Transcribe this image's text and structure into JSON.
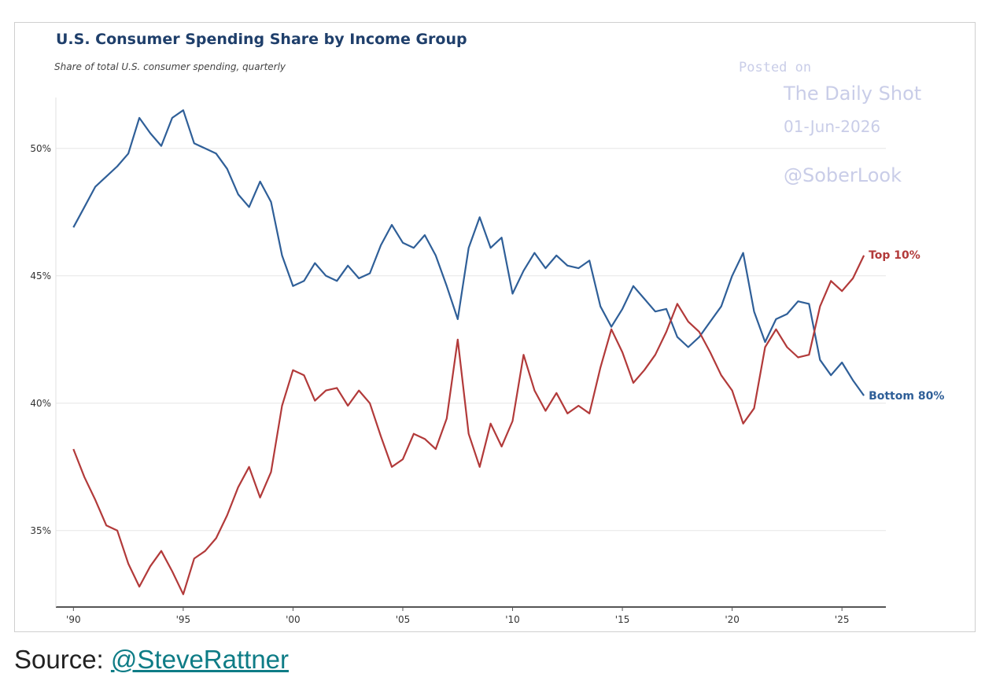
{
  "chart_data": {
    "type": "line",
    "title": "U.S. Consumer Spending Share by Income Group",
    "subtitle": "Share of total U.S. consumer spending, quarterly",
    "xlabel": "",
    "ylabel": "",
    "x_ticks": [
      "'90",
      "'95",
      "'00",
      "'05",
      "'10",
      "'15",
      "'20",
      "'25"
    ],
    "x_tick_years": [
      1990,
      1995,
      2000,
      2005,
      2010,
      2015,
      2020,
      2025
    ],
    "y_ticks": [
      "35%",
      "40%",
      "45%",
      "50%"
    ],
    "y_tick_values": [
      35,
      40,
      45,
      50
    ],
    "xlim": [
      1989.2,
      2027.0
    ],
    "ylim": [
      32.0,
      52.0
    ],
    "grid": "horizontal",
    "series": [
      {
        "name": "Bottom 80%",
        "color": "#2f5f98",
        "x": [
          1990.0,
          1990.5,
          1991.0,
          1991.5,
          1992.0,
          1992.5,
          1993.0,
          1993.5,
          1994.0,
          1994.5,
          1995.0,
          1995.5,
          1996.0,
          1996.5,
          1997.0,
          1997.5,
          1998.0,
          1998.5,
          1999.0,
          1999.5,
          2000.0,
          2000.5,
          2001.0,
          2001.5,
          2002.0,
          2002.5,
          2003.0,
          2003.5,
          2004.0,
          2004.5,
          2005.0,
          2005.5,
          2006.0,
          2006.5,
          2007.0,
          2007.5,
          2008.0,
          2008.5,
          2009.0,
          2009.5,
          2010.0,
          2010.5,
          2011.0,
          2011.5,
          2012.0,
          2012.5,
          2013.0,
          2013.5,
          2014.0,
          2014.5,
          2015.0,
          2015.5,
          2016.0,
          2016.5,
          2017.0,
          2017.5,
          2018.0,
          2018.5,
          2019.0,
          2019.5,
          2020.0,
          2020.5,
          2021.0,
          2021.5,
          2022.0,
          2022.5,
          2023.0,
          2023.5,
          2024.0,
          2024.5,
          2025.0,
          2025.5,
          2026.0
        ],
        "values": [
          46.9,
          47.7,
          48.5,
          48.9,
          49.3,
          49.8,
          51.2,
          50.6,
          50.1,
          51.2,
          51.5,
          50.2,
          50.0,
          49.8,
          49.2,
          48.2,
          47.7,
          48.7,
          47.9,
          45.8,
          44.6,
          44.8,
          45.5,
          45.0,
          44.8,
          45.4,
          44.9,
          45.1,
          46.2,
          47.0,
          46.3,
          46.1,
          46.6,
          45.8,
          44.6,
          43.3,
          46.1,
          47.3,
          46.1,
          46.5,
          44.3,
          45.2,
          45.9,
          45.3,
          45.8,
          45.4,
          45.3,
          45.6,
          43.8,
          43.0,
          43.7,
          44.6,
          44.1,
          43.6,
          43.7,
          42.6,
          42.2,
          42.6,
          43.2,
          43.8,
          45.0,
          45.9,
          43.6,
          42.4,
          43.3,
          43.5,
          44.0,
          43.9,
          41.7,
          41.1,
          41.6,
          40.9,
          40.3
        ]
      },
      {
        "name": "Top 10%",
        "color": "#b23a3a",
        "x": [
          1990.0,
          1990.5,
          1991.0,
          1991.5,
          1992.0,
          1992.5,
          1993.0,
          1993.5,
          1994.0,
          1994.5,
          1995.0,
          1995.5,
          1996.0,
          1996.5,
          1997.0,
          1997.5,
          1998.0,
          1998.5,
          1999.0,
          1999.5,
          2000.0,
          2000.5,
          2001.0,
          2001.5,
          2002.0,
          2002.5,
          2003.0,
          2003.5,
          2004.0,
          2004.5,
          2005.0,
          2005.5,
          2006.0,
          2006.5,
          2007.0,
          2007.5,
          2008.0,
          2008.5,
          2009.0,
          2009.5,
          2010.0,
          2010.5,
          2011.0,
          2011.5,
          2012.0,
          2012.5,
          2013.0,
          2013.5,
          2014.0,
          2014.5,
          2015.0,
          2015.5,
          2016.0,
          2016.5,
          2017.0,
          2017.5,
          2018.0,
          2018.5,
          2019.0,
          2019.5,
          2020.0,
          2020.5,
          2021.0,
          2021.5,
          2022.0,
          2022.5,
          2023.0,
          2023.5,
          2024.0,
          2024.5,
          2025.0,
          2025.5,
          2026.0
        ],
        "values": [
          38.2,
          37.1,
          36.2,
          35.2,
          35.0,
          33.7,
          32.8,
          33.6,
          34.2,
          33.4,
          32.5,
          33.9,
          34.2,
          34.7,
          35.6,
          36.7,
          37.5,
          36.3,
          37.3,
          39.9,
          41.3,
          41.1,
          40.1,
          40.5,
          40.6,
          39.9,
          40.5,
          40.0,
          38.7,
          37.5,
          37.8,
          38.8,
          38.6,
          38.2,
          39.4,
          42.5,
          38.8,
          37.5,
          39.2,
          38.3,
          39.3,
          41.9,
          40.5,
          39.7,
          40.4,
          39.6,
          39.9,
          39.6,
          41.4,
          42.9,
          42.0,
          40.8,
          41.3,
          41.9,
          42.8,
          43.9,
          43.2,
          42.8,
          42.0,
          41.1,
          40.5,
          39.2,
          39.8,
          42.2,
          42.9,
          42.2,
          41.8,
          41.9,
          43.8,
          44.8,
          44.4,
          44.9,
          45.8
        ]
      }
    ]
  },
  "watermark": {
    "line1": "Posted on",
    "line2": "The Daily Shot",
    "line3": "01-Jun-2026",
    "line4": "@SoberLook"
  },
  "source": {
    "prefix": "Source: ",
    "link_text": "@SteveRattner"
  }
}
